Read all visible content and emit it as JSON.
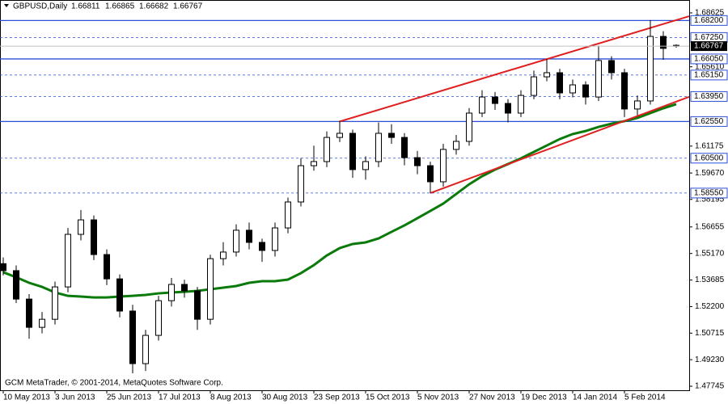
{
  "chart_data": {
    "type": "candlestick",
    "title": "GBPUSD,Daily",
    "footer": "GCM MetaTrader, © 2001-2014, MetaQuotes Software Corp.",
    "categories": [
      "10 May 2013",
      null,
      null,
      null,
      "3 Jun 2013",
      null,
      null,
      null,
      "25 Jun 2013",
      null,
      null,
      null,
      "17 Jul 2013",
      null,
      null,
      null,
      "8 Aug 2013",
      null,
      null,
      null,
      "30 Aug 2013",
      null,
      null,
      null,
      "23 Sep 2013",
      null,
      null,
      null,
      "15 Oct 2013",
      null,
      null,
      null,
      "5 Nov 2013",
      null,
      null,
      null,
      "27 Nov 2013",
      null,
      null,
      null,
      "19 Dec 2013",
      null,
      null,
      null,
      "14 Jan 2014",
      null,
      null,
      null,
      "5 Feb 2014",
      null,
      null,
      null,
      null
    ],
    "open": [
      1.546,
      1.5421,
      1.5262,
      1.5104,
      1.5149,
      1.533,
      1.5624,
      1.5705,
      1.5511,
      1.5375,
      1.5195,
      1.4901,
      1.5059,
      1.5253,
      1.5344,
      1.5308,
      1.5149,
      1.5488,
      1.5525,
      1.5647,
      1.5579,
      1.5534,
      1.566,
      1.5805,
      1.6008,
      1.6031,
      1.6166,
      1.6189,
      1.5986,
      1.6031,
      1.6189,
      1.6166,
      1.6053,
      1.6008,
      1.5918,
      1.6099,
      1.6144,
      1.6302,
      1.6392,
      1.6356,
      1.6302,
      1.6401,
      1.6505,
      1.6528,
      1.6415,
      1.646,
      1.6392,
      1.6596,
      1.6528,
      1.6325,
      1.637,
      1.6731,
      1.66811
    ],
    "high": [
      1.5495,
      1.545,
      1.529,
      1.519,
      1.536,
      1.566,
      1.576,
      1.573,
      1.554,
      1.54,
      1.523,
      1.509,
      1.528,
      1.538,
      1.537,
      1.533,
      1.551,
      1.558,
      1.568,
      1.569,
      1.56,
      1.569,
      1.583,
      1.605,
      1.612,
      1.62,
      1.6259,
      1.621,
      1.606,
      1.625,
      1.624,
      1.619,
      1.609,
      1.603,
      1.613,
      1.618,
      1.633,
      1.643,
      1.642,
      1.638,
      1.643,
      1.654,
      1.6605,
      1.655,
      1.649,
      1.648,
      1.668,
      1.662,
      1.655,
      1.64,
      1.6822,
      1.676,
      1.66865
    ],
    "low": [
      1.5395,
      1.524,
      1.504,
      1.507,
      1.512,
      1.53,
      1.559,
      1.548,
      1.534,
      1.516,
      1.4847,
      1.486,
      1.503,
      1.522,
      1.527,
      1.509,
      1.512,
      1.545,
      1.55,
      1.554,
      1.547,
      1.55,
      1.563,
      1.578,
      1.598,
      1.6,
      1.614,
      1.594,
      1.593,
      1.6,
      1.613,
      1.601,
      1.596,
      1.5855,
      1.589,
      1.607,
      1.612,
      1.628,
      1.632,
      1.625,
      1.628,
      1.638,
      1.648,
      1.638,
      1.639,
      1.635,
      1.637,
      1.649,
      1.628,
      1.629,
      1.635,
      1.66,
      1.66682
    ],
    "close": [
      1.5421,
      1.5262,
      1.5104,
      1.5149,
      1.533,
      1.5624,
      1.5705,
      1.5511,
      1.5375,
      1.5195,
      1.4901,
      1.5059,
      1.5253,
      1.5344,
      1.5308,
      1.5149,
      1.5488,
      1.5525,
      1.5647,
      1.5579,
      1.5534,
      1.566,
      1.5805,
      1.6008,
      1.6031,
      1.6166,
      1.6189,
      1.5986,
      1.6031,
      1.6189,
      1.6166,
      1.6053,
      1.6008,
      1.5918,
      1.6099,
      1.6144,
      1.6302,
      1.6392,
      1.6356,
      1.6302,
      1.6401,
      1.6505,
      1.6528,
      1.6415,
      1.646,
      1.6392,
      1.6596,
      1.6528,
      1.6325,
      1.637,
      1.6731,
      1.6664,
      1.66767
    ],
    "moving_average": {
      "color": "#0a7a0a",
      "values": [
        1.5412,
        1.5384,
        1.5353,
        1.533,
        1.5299,
        1.528,
        1.5276,
        1.5271,
        1.5271,
        1.5276,
        1.528,
        1.5285,
        1.5294,
        1.5299,
        1.5303,
        1.5308,
        1.5317,
        1.5326,
        1.5335,
        1.5353,
        1.5362,
        1.5362,
        1.5371,
        1.5407,
        1.5452,
        1.5506,
        1.5547,
        1.557,
        1.5579,
        1.5601,
        1.5638,
        1.5674,
        1.5714,
        1.5755,
        1.5796,
        1.585,
        1.5904,
        1.5949,
        1.5986,
        1.6017,
        1.6049,
        1.6085,
        1.6121,
        1.6157,
        1.6185,
        1.6202,
        1.6225,
        1.6243,
        1.6257,
        1.6275,
        1.6302,
        1.6329,
        1.6352
      ]
    },
    "trendlines": [
      {
        "color": "#e02020",
        "from": [
          26,
          1.6255
        ],
        "to": [
          53,
          1.6844
        ]
      },
      {
        "color": "#e02020",
        "from": [
          33,
          1.5855
        ],
        "to": [
          53,
          1.6393
        ]
      }
    ],
    "levels": [
      {
        "value": 1.682,
        "label": "1.68200",
        "style": "solid"
      },
      {
        "value": 1.6725,
        "label": "1.67250",
        "style": "dashed"
      },
      {
        "value": 1.6605,
        "label": "1.66050",
        "style": "solid"
      },
      {
        "value": 1.6515,
        "label": "1.65150",
        "style": "dashed"
      },
      {
        "value": 1.6395,
        "label": "1.63950",
        "style": "dashed"
      },
      {
        "value": 1.6255,
        "label": "1.62550",
        "style": "solid"
      },
      {
        "value": 1.605,
        "label": "1.60500",
        "style": "dashed"
      },
      {
        "value": 1.5855,
        "label": "1.58550",
        "style": "dashed"
      }
    ],
    "level_color": "#2b4fd8",
    "ylim": [
      1.4752,
      1.6912
    ],
    "yticks": [
      {
        "value": 1.68625,
        "label": "1.68625"
      },
      {
        "value": 1.6561,
        "label": "1.65610"
      },
      {
        "value": 1.61175,
        "label": "1.61175"
      },
      {
        "value": 1.5967,
        "label": "1.59670"
      },
      {
        "value": 1.58195,
        "label": "1.58195"
      },
      {
        "value": 1.56655,
        "label": "1.56655"
      },
      {
        "value": 1.5517,
        "label": "1.55170"
      },
      {
        "value": 1.53685,
        "label": "1.53685"
      },
      {
        "value": 1.522,
        "label": "1.52200"
      },
      {
        "value": 1.50715,
        "label": "1.50715"
      },
      {
        "value": 1.4923,
        "label": "1.49230"
      },
      {
        "value": 1.47745,
        "label": "1.47745"
      }
    ]
  }
}
